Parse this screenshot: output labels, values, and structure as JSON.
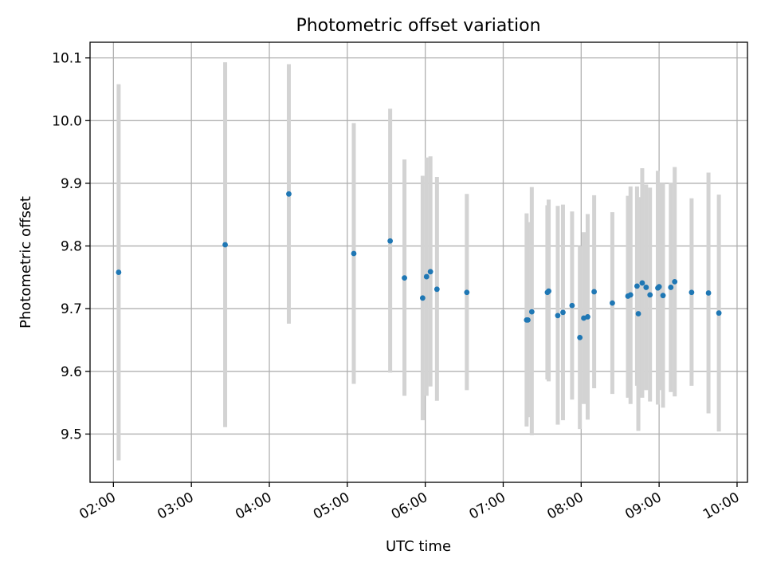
{
  "chart_data": {
    "type": "scatter",
    "title": "Photometric offset variation",
    "xlabel": "UTC time",
    "ylabel": "Photometric offset",
    "x_axis_type": "time",
    "xlim": [
      "01:42",
      "10:08"
    ],
    "ylim": [
      9.423,
      10.125
    ],
    "x_ticks": [
      "02:00",
      "03:00",
      "04:00",
      "05:00",
      "06:00",
      "07:00",
      "08:00",
      "09:00",
      "10:00"
    ],
    "y_ticks": [
      9.5,
      9.6,
      9.7,
      9.8,
      9.9,
      10.0,
      10.1
    ],
    "y_tick_labels": [
      "9.5",
      "9.6",
      "9.7",
      "9.8",
      "9.9",
      "10.0",
      "10.1"
    ],
    "grid": true,
    "colors": {
      "points": "#1f77b4",
      "error_bars": "#d3d3d3"
    },
    "points": [
      {
        "t": "02:04",
        "y": 9.758,
        "lo": 9.458,
        "hi": 10.058
      },
      {
        "t": "03:26",
        "y": 9.802,
        "lo": 9.511,
        "hi": 10.093
      },
      {
        "t": "04:15",
        "y": 9.883,
        "lo": 9.676,
        "hi": 10.09
      },
      {
        "t": "05:05",
        "y": 9.788,
        "lo": 9.58,
        "hi": 9.996
      },
      {
        "t": "05:33",
        "y": 9.808,
        "lo": 9.598,
        "hi": 10.019
      },
      {
        "t": "05:44",
        "y": 9.749,
        "lo": 9.561,
        "hi": 9.938
      },
      {
        "t": "05:58",
        "y": 9.717,
        "lo": 9.522,
        "hi": 9.912
      },
      {
        "t": "06:01",
        "y": 9.751,
        "lo": 9.561,
        "hi": 9.941
      },
      {
        "t": "06:04",
        "y": 9.759,
        "lo": 9.576,
        "hi": 9.943
      },
      {
        "t": "06:09",
        "y": 9.731,
        "lo": 9.553,
        "hi": 9.91
      },
      {
        "t": "06:32",
        "y": 9.726,
        "lo": 9.57,
        "hi": 9.883
      },
      {
        "t": "07:18",
        "y": 9.682,
        "lo": 9.512,
        "hi": 9.852
      },
      {
        "t": "07:19",
        "y": 9.682,
        "lo": 9.527,
        "hi": 9.838
      },
      {
        "t": "07:22",
        "y": 9.695,
        "lo": 9.498,
        "hi": 9.894
      },
      {
        "t": "07:34",
        "y": 9.726,
        "lo": 9.587,
        "hi": 9.865
      },
      {
        "t": "07:35",
        "y": 9.728,
        "lo": 9.584,
        "hi": 9.874
      },
      {
        "t": "07:42",
        "y": 9.689,
        "lo": 9.515,
        "hi": 9.864
      },
      {
        "t": "07:46",
        "y": 9.694,
        "lo": 9.522,
        "hi": 9.866
      },
      {
        "t": "07:53",
        "y": 9.705,
        "lo": 9.555,
        "hi": 9.855
      },
      {
        "t": "07:59",
        "y": 9.654,
        "lo": 9.508,
        "hi": 9.8
      },
      {
        "t": "08:02",
        "y": 9.685,
        "lo": 9.548,
        "hi": 9.822
      },
      {
        "t": "08:05",
        "y": 9.687,
        "lo": 9.523,
        "hi": 9.851
      },
      {
        "t": "08:10",
        "y": 9.727,
        "lo": 9.573,
        "hi": 9.881
      },
      {
        "t": "08:24",
        "y": 9.709,
        "lo": 9.564,
        "hi": 9.854
      },
      {
        "t": "08:36",
        "y": 9.72,
        "lo": 9.558,
        "hi": 9.88
      },
      {
        "t": "08:38",
        "y": 9.722,
        "lo": 9.548,
        "hi": 9.895
      },
      {
        "t": "08:43",
        "y": 9.736,
        "lo": 9.577,
        "hi": 9.895
      },
      {
        "t": "08:44",
        "y": 9.692,
        "lo": 9.505,
        "hi": 9.878
      },
      {
        "t": "08:47",
        "y": 9.741,
        "lo": 9.558,
        "hi": 9.924
      },
      {
        "t": "08:50",
        "y": 9.734,
        "lo": 9.57,
        "hi": 9.898
      },
      {
        "t": "08:53",
        "y": 9.722,
        "lo": 9.552,
        "hi": 9.893
      },
      {
        "t": "08:59",
        "y": 9.733,
        "lo": 9.547,
        "hi": 9.92
      },
      {
        "t": "09:00",
        "y": 9.735,
        "lo": 9.57,
        "hi": 9.9
      },
      {
        "t": "09:03",
        "y": 9.721,
        "lo": 9.542,
        "hi": 9.9
      },
      {
        "t": "09:09",
        "y": 9.734,
        "lo": 9.567,
        "hi": 9.901
      },
      {
        "t": "09:12",
        "y": 9.743,
        "lo": 9.56,
        "hi": 9.926
      },
      {
        "t": "09:25",
        "y": 9.726,
        "lo": 9.577,
        "hi": 9.876
      },
      {
        "t": "09:38",
        "y": 9.725,
        "lo": 9.533,
        "hi": 9.917
      },
      {
        "t": "09:46",
        "y": 9.693,
        "lo": 9.504,
        "hi": 9.882
      }
    ]
  }
}
